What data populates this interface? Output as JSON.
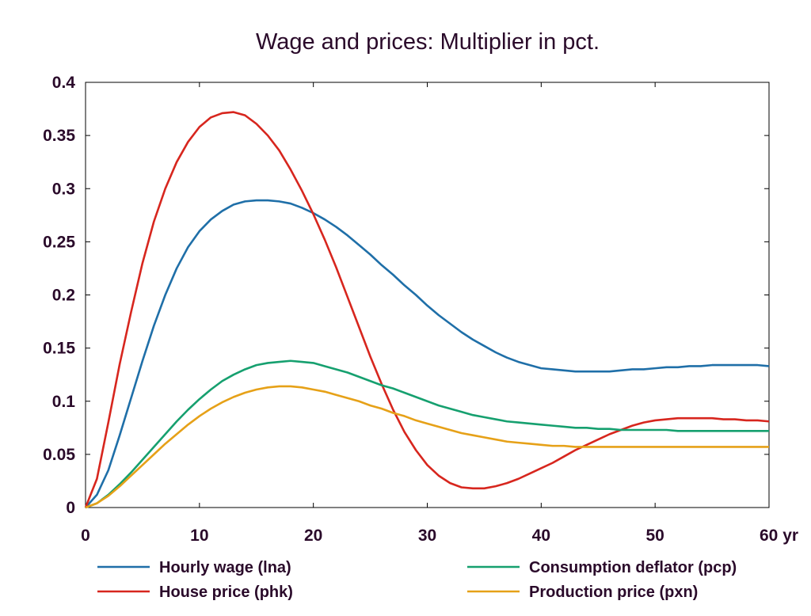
{
  "chart_data": {
    "type": "line",
    "title": "Wage and prices: Multiplier in pct.",
    "xlabel": "",
    "ylabel": "",
    "xlim": [
      0,
      60
    ],
    "ylim": [
      0,
      0.4
    ],
    "x_ticks": [
      0,
      10,
      20,
      30,
      40,
      50,
      60
    ],
    "x_tick_labels": [
      "0",
      "10",
      "20",
      "30",
      "40",
      "50",
      "60 yr"
    ],
    "y_ticks": [
      0,
      0.05,
      0.1,
      0.15,
      0.2,
      0.25,
      0.3,
      0.35,
      0.4
    ],
    "y_tick_labels": [
      "0",
      "0.05",
      "0.1",
      "0.15",
      "0.2",
      "0.25",
      "0.3",
      "0.35",
      "0.4"
    ],
    "grid": false,
    "legend_position": "bottom",
    "x": [
      0,
      1,
      2,
      3,
      4,
      5,
      6,
      7,
      8,
      9,
      10,
      11,
      12,
      13,
      14,
      15,
      16,
      17,
      18,
      19,
      20,
      21,
      22,
      23,
      24,
      25,
      26,
      27,
      28,
      29,
      30,
      31,
      32,
      33,
      34,
      35,
      36,
      37,
      38,
      39,
      40,
      41,
      42,
      43,
      44,
      45,
      46,
      47,
      48,
      49,
      50,
      51,
      52,
      53,
      54,
      55,
      56,
      57,
      58,
      59,
      60
    ],
    "series": [
      {
        "name": "Hourly wage (lna)",
        "color": "#1f6fa8",
        "values": [
          0,
          0.012,
          0.035,
          0.068,
          0.103,
          0.138,
          0.171,
          0.2,
          0.225,
          0.245,
          0.26,
          0.271,
          0.279,
          0.285,
          0.288,
          0.289,
          0.289,
          0.288,
          0.286,
          0.282,
          0.277,
          0.271,
          0.264,
          0.256,
          0.247,
          0.238,
          0.228,
          0.219,
          0.209,
          0.2,
          0.19,
          0.181,
          0.173,
          0.165,
          0.158,
          0.152,
          0.146,
          0.141,
          0.137,
          0.134,
          0.131,
          0.13,
          0.129,
          0.128,
          0.128,
          0.128,
          0.128,
          0.129,
          0.13,
          0.13,
          0.131,
          0.132,
          0.132,
          0.133,
          0.133,
          0.134,
          0.134,
          0.134,
          0.134,
          0.134,
          0.133
        ]
      },
      {
        "name": "House price (phk)",
        "color": "#d7261e",
        "values": [
          0,
          0.027,
          0.08,
          0.135,
          0.184,
          0.23,
          0.269,
          0.3,
          0.325,
          0.344,
          0.358,
          0.367,
          0.371,
          0.372,
          0.369,
          0.361,
          0.35,
          0.336,
          0.318,
          0.298,
          0.276,
          0.252,
          0.226,
          0.198,
          0.17,
          0.142,
          0.116,
          0.092,
          0.071,
          0.054,
          0.04,
          0.03,
          0.023,
          0.019,
          0.018,
          0.018,
          0.02,
          0.023,
          0.027,
          0.032,
          0.037,
          0.042,
          0.048,
          0.054,
          0.059,
          0.064,
          0.069,
          0.073,
          0.077,
          0.08,
          0.082,
          0.083,
          0.084,
          0.084,
          0.084,
          0.084,
          0.083,
          0.083,
          0.082,
          0.082,
          0.081
        ]
      },
      {
        "name": "Consumption deflator (pcp)",
        "color": "#16a06f",
        "values": [
          0,
          0.004,
          0.012,
          0.022,
          0.033,
          0.045,
          0.057,
          0.069,
          0.081,
          0.092,
          0.102,
          0.111,
          0.119,
          0.125,
          0.13,
          0.134,
          0.136,
          0.137,
          0.138,
          0.137,
          0.136,
          0.133,
          0.13,
          0.127,
          0.123,
          0.119,
          0.115,
          0.112,
          0.108,
          0.104,
          0.1,
          0.096,
          0.093,
          0.09,
          0.087,
          0.085,
          0.083,
          0.081,
          0.08,
          0.079,
          0.078,
          0.077,
          0.076,
          0.075,
          0.075,
          0.074,
          0.074,
          0.073,
          0.073,
          0.073,
          0.073,
          0.073,
          0.072,
          0.072,
          0.072,
          0.072,
          0.072,
          0.072,
          0.072,
          0.072,
          0.072
        ]
      },
      {
        "name": "Production price (pxn)",
        "color": "#e6a118",
        "values": [
          0,
          0.004,
          0.011,
          0.02,
          0.03,
          0.04,
          0.05,
          0.06,
          0.069,
          0.078,
          0.086,
          0.093,
          0.099,
          0.104,
          0.108,
          0.111,
          0.113,
          0.114,
          0.114,
          0.113,
          0.111,
          0.109,
          0.106,
          0.103,
          0.1,
          0.096,
          0.093,
          0.089,
          0.086,
          0.082,
          0.079,
          0.076,
          0.073,
          0.07,
          0.068,
          0.066,
          0.064,
          0.062,
          0.061,
          0.06,
          0.059,
          0.058,
          0.058,
          0.057,
          0.057,
          0.057,
          0.057,
          0.057,
          0.057,
          0.057,
          0.057,
          0.057,
          0.057,
          0.057,
          0.057,
          0.057,
          0.057,
          0.057,
          0.057,
          0.057,
          0.057
        ]
      }
    ]
  }
}
